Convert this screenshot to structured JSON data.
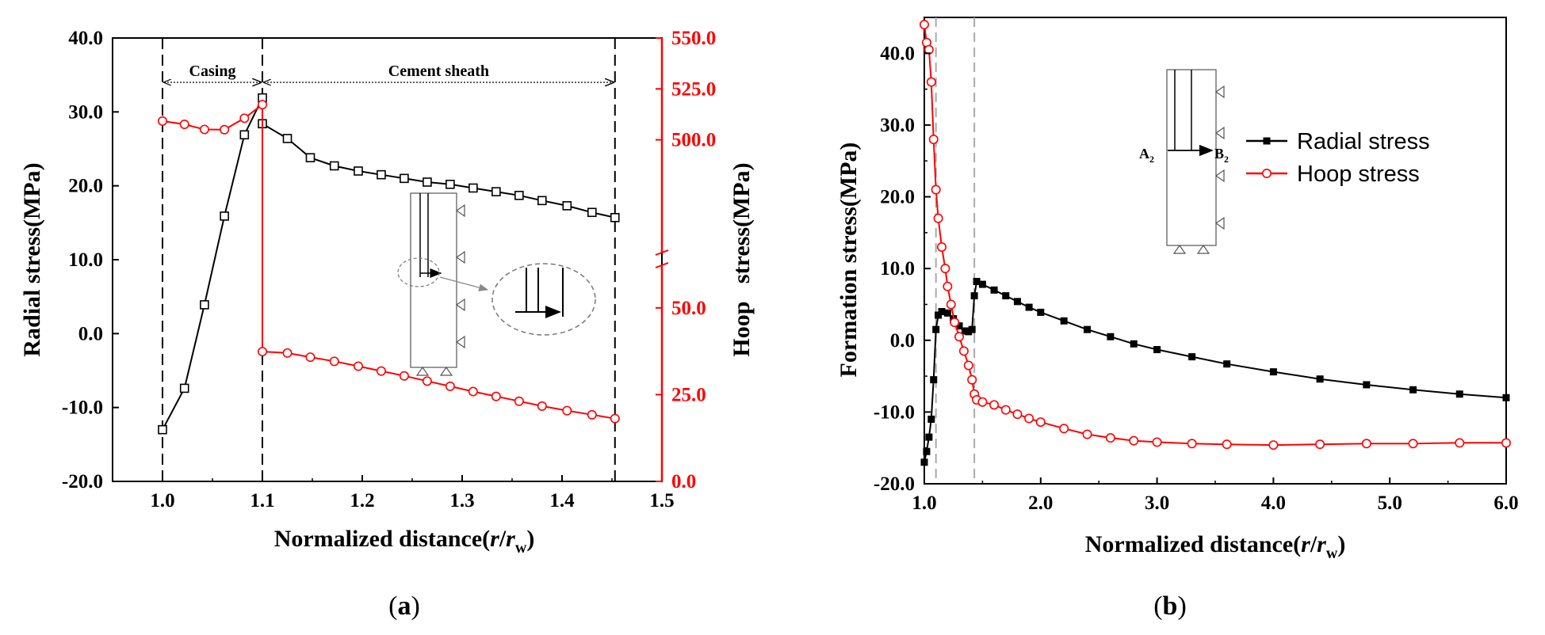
{
  "chart_data": [
    {
      "panel": "a",
      "type": "line",
      "panel_label": "a",
      "xlabel": "Normalized distance(r/r_w)",
      "ylabel_left": "Radial stress(MPa)",
      "ylabel_right": "Hoop stress(MPa)",
      "xlim": [
        0.95,
        1.5
      ],
      "xticks": [
        "1.0",
        "1.1",
        "1.2",
        "1.3",
        "1.4",
        "1.5"
      ],
      "xtick_values": [
        1.0,
        1.1,
        1.2,
        1.3,
        1.4,
        1.5
      ],
      "ylim_left": [
        -20,
        40
      ],
      "yticks_left": [
        "40.0",
        "30.0",
        "20.0",
        "10.0",
        "0.0",
        "-10.0",
        "-20.0"
      ],
      "yticks_left_values": [
        40,
        30,
        20,
        10,
        0,
        -10,
        -20
      ],
      "right_axis_broken": true,
      "right_axis_upper_range": [
        480,
        550
      ],
      "right_axis_lower_range": [
        0,
        60
      ],
      "yticks_right": [
        "550.0",
        "525.0",
        "500.0",
        "50.0",
        "25.0",
        "0.0"
      ],
      "yticks_right_values": [
        550,
        525,
        500,
        50,
        25,
        0
      ],
      "regions": [
        {
          "label": "Casing",
          "from": 1.0,
          "to": 1.1
        },
        {
          "label": "Cement sheath",
          "from": 1.1,
          "to": 1.453
        }
      ],
      "series": [
        {
          "name": "Radial stress",
          "axis": "left",
          "color": "#000000",
          "marker": "open-square",
          "x": [
            1.0,
            1.022,
            1.042,
            1.062,
            1.082,
            1.1,
            1.1,
            1.125,
            1.148,
            1.172,
            1.196,
            1.219,
            1.242,
            1.265,
            1.288,
            1.311,
            1.334,
            1.357,
            1.38,
            1.405,
            1.43,
            1.453
          ],
          "values": [
            -13.0,
            -7.4,
            3.9,
            15.9,
            26.9,
            31.9,
            28.4,
            26.4,
            23.8,
            22.7,
            22.0,
            21.5,
            21.0,
            20.5,
            20.2,
            19.7,
            19.2,
            18.7,
            18.0,
            17.3,
            16.4,
            15.7
          ]
        },
        {
          "name": "Hoop stress",
          "axis": "right",
          "color": "#ff0000",
          "marker": "open-circle",
          "x": [
            1.0,
            1.022,
            1.042,
            1.062,
            1.082,
            1.1,
            1.1,
            1.125,
            1.148,
            1.172,
            1.196,
            1.219,
            1.242,
            1.265,
            1.288,
            1.311,
            1.334,
            1.357,
            1.38,
            1.405,
            1.43,
            1.453
          ],
          "values": [
            509.2,
            507.6,
            505.1,
            505.0,
            510.6,
            517.3,
            37.4,
            37.0,
            35.8,
            34.6,
            33.2,
            31.8,
            30.4,
            28.9,
            27.4,
            25.9,
            24.5,
            23.1,
            21.7,
            20.4,
            19.2,
            18.1
          ]
        }
      ]
    },
    {
      "panel": "b",
      "type": "line",
      "panel_label": "b",
      "xlabel": "Normalized distance(r/r_w)",
      "ylabel": "Formation stress(MPa)",
      "xlim": [
        1.0,
        6.0
      ],
      "xticks": [
        "1.0",
        "2.0",
        "3.0",
        "4.0",
        "5.0",
        "6.0"
      ],
      "xtick_values": [
        1,
        2,
        3,
        4,
        5,
        6
      ],
      "ylim": [
        -20,
        45
      ],
      "yticks": [
        "40.0",
        "30.0",
        "20.0",
        "10.0",
        "0.0",
        "-10.0",
        "-20.0"
      ],
      "ytick_values": [
        40,
        30,
        20,
        10,
        0,
        -10,
        -20
      ],
      "vlines": [
        1.1,
        1.43
      ],
      "legend": {
        "position": "top-right",
        "entries": [
          "Radial stress",
          "Hoop   stress"
        ]
      },
      "diagram_labels": {
        "start": "A",
        "start_sub": "2",
        "end": "B",
        "end_sub": "2"
      },
      "series": [
        {
          "name": "Radial stress",
          "color": "#000000",
          "marker": "filled-square",
          "x": [
            1.0,
            1.02,
            1.04,
            1.06,
            1.08,
            1.1,
            1.12,
            1.15,
            1.2,
            1.25,
            1.3,
            1.35,
            1.38,
            1.41,
            1.43,
            1.45,
            1.5,
            1.6,
            1.7,
            1.8,
            1.9,
            2.0,
            2.2,
            2.4,
            2.6,
            2.8,
            3.0,
            3.3,
            3.6,
            4.0,
            4.4,
            4.8,
            5.2,
            5.6,
            6.0
          ],
          "values": [
            -17.0,
            -15.5,
            -13.5,
            -11.0,
            -5.5,
            1.5,
            3.5,
            4.0,
            3.8,
            3.0,
            2.0,
            1.3,
            1.2,
            1.5,
            6.2,
            8.2,
            7.8,
            7.0,
            6.2,
            5.4,
            4.6,
            3.9,
            2.7,
            1.5,
            0.5,
            -0.5,
            -1.3,
            -2.3,
            -3.3,
            -4.4,
            -5.4,
            -6.2,
            -6.9,
            -7.5,
            -8.0
          ]
        },
        {
          "name": "Hoop   stress",
          "color": "#ff0000",
          "marker": "open-circle",
          "x": [
            1.0,
            1.02,
            1.04,
            1.06,
            1.08,
            1.1,
            1.12,
            1.15,
            1.18,
            1.2,
            1.23,
            1.26,
            1.3,
            1.34,
            1.38,
            1.41,
            1.43,
            1.45,
            1.5,
            1.6,
            1.7,
            1.8,
            1.9,
            2.0,
            2.2,
            2.4,
            2.6,
            2.8,
            3.0,
            3.3,
            3.6,
            4.0,
            4.4,
            4.8,
            5.2,
            5.6,
            6.0
          ],
          "values": [
            44.0,
            41.5,
            40.5,
            36.0,
            28.0,
            21.0,
            17.0,
            13.0,
            10.0,
            7.5,
            5.0,
            2.5,
            0.5,
            -1.5,
            -3.5,
            -5.5,
            -7.5,
            -8.3,
            -8.6,
            -9.0,
            -9.7,
            -10.3,
            -10.9,
            -11.4,
            -12.3,
            -13.1,
            -13.6,
            -14.0,
            -14.2,
            -14.4,
            -14.5,
            -14.6,
            -14.5,
            -14.4,
            -14.4,
            -14.3,
            -14.3
          ]
        }
      ]
    }
  ]
}
